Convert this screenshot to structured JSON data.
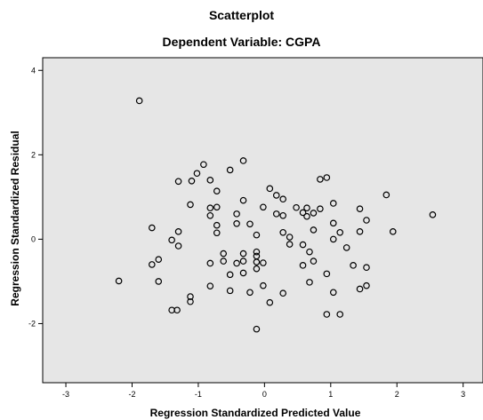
{
  "chart_data": {
    "type": "scatter",
    "title": "Scatterplot",
    "subtitle": "Dependent Variable: CGPA",
    "xlabel": "Regression Standardized Predicted Value",
    "ylabel": "Regression Standardized Residual",
    "xlim": [
      -3.35,
      3.3
    ],
    "ylim": [
      -3.4,
      4.3
    ],
    "xticks": [
      "-3",
      "-2",
      "-1",
      "0",
      "1",
      "2",
      "3"
    ],
    "xtick_values": [
      -3,
      -2,
      -1,
      0,
      1,
      2,
      3
    ],
    "yticks": [
      "-2",
      "0",
      "2",
      "4"
    ],
    "ytick_values": [
      -2,
      0,
      2,
      4
    ],
    "grid": false,
    "plot_background": "#e6e6e6",
    "marker_color": "#000000",
    "points": [
      {
        "x": -1.89,
        "y": 3.28
      },
      {
        "x": -2.2,
        "y": -0.99
      },
      {
        "x": -1.7,
        "y": 0.27
      },
      {
        "x": -1.7,
        "y": -0.6
      },
      {
        "x": -1.6,
        "y": -0.48
      },
      {
        "x": -1.6,
        "y": -1.0
      },
      {
        "x": -1.4,
        "y": -0.02
      },
      {
        "x": -1.4,
        "y": -1.68
      },
      {
        "x": -1.32,
        "y": -1.68
      },
      {
        "x": -1.3,
        "y": 1.37
      },
      {
        "x": -1.3,
        "y": 0.18
      },
      {
        "x": -1.3,
        "y": -0.16
      },
      {
        "x": -1.12,
        "y": 0.82
      },
      {
        "x": -1.12,
        "y": -1.36
      },
      {
        "x": -1.12,
        "y": -1.48
      },
      {
        "x": -1.1,
        "y": 1.38
      },
      {
        "x": -1.02,
        "y": 1.56
      },
      {
        "x": -0.92,
        "y": 1.77
      },
      {
        "x": -0.82,
        "y": 1.4
      },
      {
        "x": -0.82,
        "y": 0.56
      },
      {
        "x": -0.82,
        "y": 0.74
      },
      {
        "x": -0.82,
        "y": -0.57
      },
      {
        "x": -0.82,
        "y": -1.11
      },
      {
        "x": -0.72,
        "y": 1.14
      },
      {
        "x": -0.72,
        "y": 0.76
      },
      {
        "x": -0.72,
        "y": 0.33
      },
      {
        "x": -0.72,
        "y": 0.15
      },
      {
        "x": -0.62,
        "y": -0.34
      },
      {
        "x": -0.62,
        "y": -0.52
      },
      {
        "x": -0.52,
        "y": 1.64
      },
      {
        "x": -0.52,
        "y": -0.84
      },
      {
        "x": -0.52,
        "y": -1.22
      },
      {
        "x": -0.42,
        "y": 0.6
      },
      {
        "x": -0.42,
        "y": 0.37
      },
      {
        "x": -0.42,
        "y": -0.57
      },
      {
        "x": -0.32,
        "y": 1.86
      },
      {
        "x": -0.32,
        "y": 0.92
      },
      {
        "x": -0.32,
        "y": -0.34
      },
      {
        "x": -0.32,
        "y": -0.52
      },
      {
        "x": -0.32,
        "y": -0.8
      },
      {
        "x": -0.22,
        "y": 0.36
      },
      {
        "x": -0.22,
        "y": -1.26
      },
      {
        "x": -0.12,
        "y": 0.1
      },
      {
        "x": -0.12,
        "y": -0.3
      },
      {
        "x": -0.12,
        "y": -0.4
      },
      {
        "x": -0.12,
        "y": -0.54
      },
      {
        "x": -0.12,
        "y": -0.7
      },
      {
        "x": -0.12,
        "y": -2.13
      },
      {
        "x": -0.02,
        "y": 0.76
      },
      {
        "x": -0.02,
        "y": -0.56
      },
      {
        "x": -0.02,
        "y": -1.1
      },
      {
        "x": 0.08,
        "y": 1.2
      },
      {
        "x": 0.08,
        "y": -1.5
      },
      {
        "x": 0.18,
        "y": 1.04
      },
      {
        "x": 0.18,
        "y": 0.6
      },
      {
        "x": 0.28,
        "y": 0.95
      },
      {
        "x": 0.28,
        "y": 0.56
      },
      {
        "x": 0.28,
        "y": 0.16
      },
      {
        "x": 0.28,
        "y": -1.28
      },
      {
        "x": 0.38,
        "y": 0.05
      },
      {
        "x": 0.38,
        "y": -0.12
      },
      {
        "x": 0.48,
        "y": 0.75
      },
      {
        "x": 0.58,
        "y": 0.63
      },
      {
        "x": 0.58,
        "y": -0.13
      },
      {
        "x": 0.58,
        "y": -0.62
      },
      {
        "x": 0.64,
        "y": 0.54
      },
      {
        "x": 0.64,
        "y": 0.74
      },
      {
        "x": 0.68,
        "y": -0.3
      },
      {
        "x": 0.68,
        "y": -1.02
      },
      {
        "x": 0.74,
        "y": 0.62
      },
      {
        "x": 0.74,
        "y": 0.22
      },
      {
        "x": 0.74,
        "y": -0.52
      },
      {
        "x": 0.84,
        "y": 1.42
      },
      {
        "x": 0.84,
        "y": 0.72
      },
      {
        "x": 0.94,
        "y": 1.46
      },
      {
        "x": 0.94,
        "y": -0.82
      },
      {
        "x": 0.94,
        "y": -1.78
      },
      {
        "x": 1.04,
        "y": 0.85
      },
      {
        "x": 1.04,
        "y": 0.38
      },
      {
        "x": 1.04,
        "y": 0.0
      },
      {
        "x": 1.04,
        "y": -1.26
      },
      {
        "x": 1.14,
        "y": 0.16
      },
      {
        "x": 1.14,
        "y": -1.78
      },
      {
        "x": 1.24,
        "y": -0.2
      },
      {
        "x": 1.34,
        "y": -0.62
      },
      {
        "x": 1.44,
        "y": 0.72
      },
      {
        "x": 1.44,
        "y": 0.18
      },
      {
        "x": 1.44,
        "y": -1.18
      },
      {
        "x": 1.54,
        "y": 0.45
      },
      {
        "x": 1.54,
        "y": -0.67
      },
      {
        "x": 1.54,
        "y": -1.1
      },
      {
        "x": 1.84,
        "y": 1.05
      },
      {
        "x": 1.94,
        "y": 0.18
      },
      {
        "x": 2.54,
        "y": 0.58
      }
    ]
  }
}
